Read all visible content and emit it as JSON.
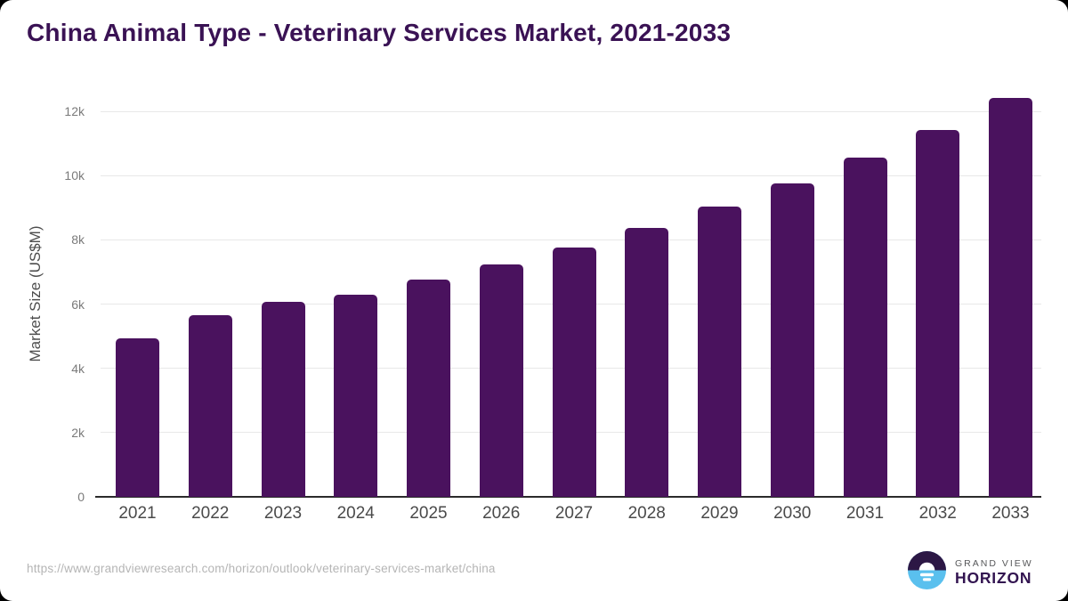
{
  "page": {
    "background": "#000000",
    "card_background": "#ffffff"
  },
  "chart_data": {
    "type": "bar",
    "title": "China Animal Type - Veterinary Services Market, 2021-2033",
    "title_color": "#3a1254",
    "categories": [
      "2021",
      "2022",
      "2023",
      "2024",
      "2025",
      "2026",
      "2027",
      "2028",
      "2029",
      "2030",
      "2031",
      "2032",
      "2033"
    ],
    "values": [
      4930,
      5650,
      6070,
      6290,
      6760,
      7230,
      7760,
      8370,
      9030,
      9750,
      10560,
      11420,
      12420
    ],
    "xlabel": "",
    "ylabel": "Market Size (US$M)",
    "ylim": [
      0,
      12700
    ],
    "yticks": [
      0,
      2000,
      4000,
      6000,
      8000,
      10000,
      12000
    ],
    "ytick_labels": [
      "0",
      "2k",
      "4k",
      "6k",
      "8k",
      "10k",
      "12k"
    ],
    "grid": true,
    "legend": false,
    "bar_color": "#4a125e",
    "gridline_color": "#e8e8e8",
    "axis_color": "#2b2b2b"
  },
  "footer": {
    "source_url": "https://www.grandviewresearch.com/horizon/outlook/veterinary-services-market/china",
    "logo": {
      "icon": "grand-view-horizon-logo",
      "line1": "GRAND VIEW",
      "line2": "HORIZON",
      "icon_purple": "#2c1745",
      "icon_blue": "#5ac0ee",
      "text_gray": "#57585a",
      "text_purple": "#321450"
    }
  }
}
